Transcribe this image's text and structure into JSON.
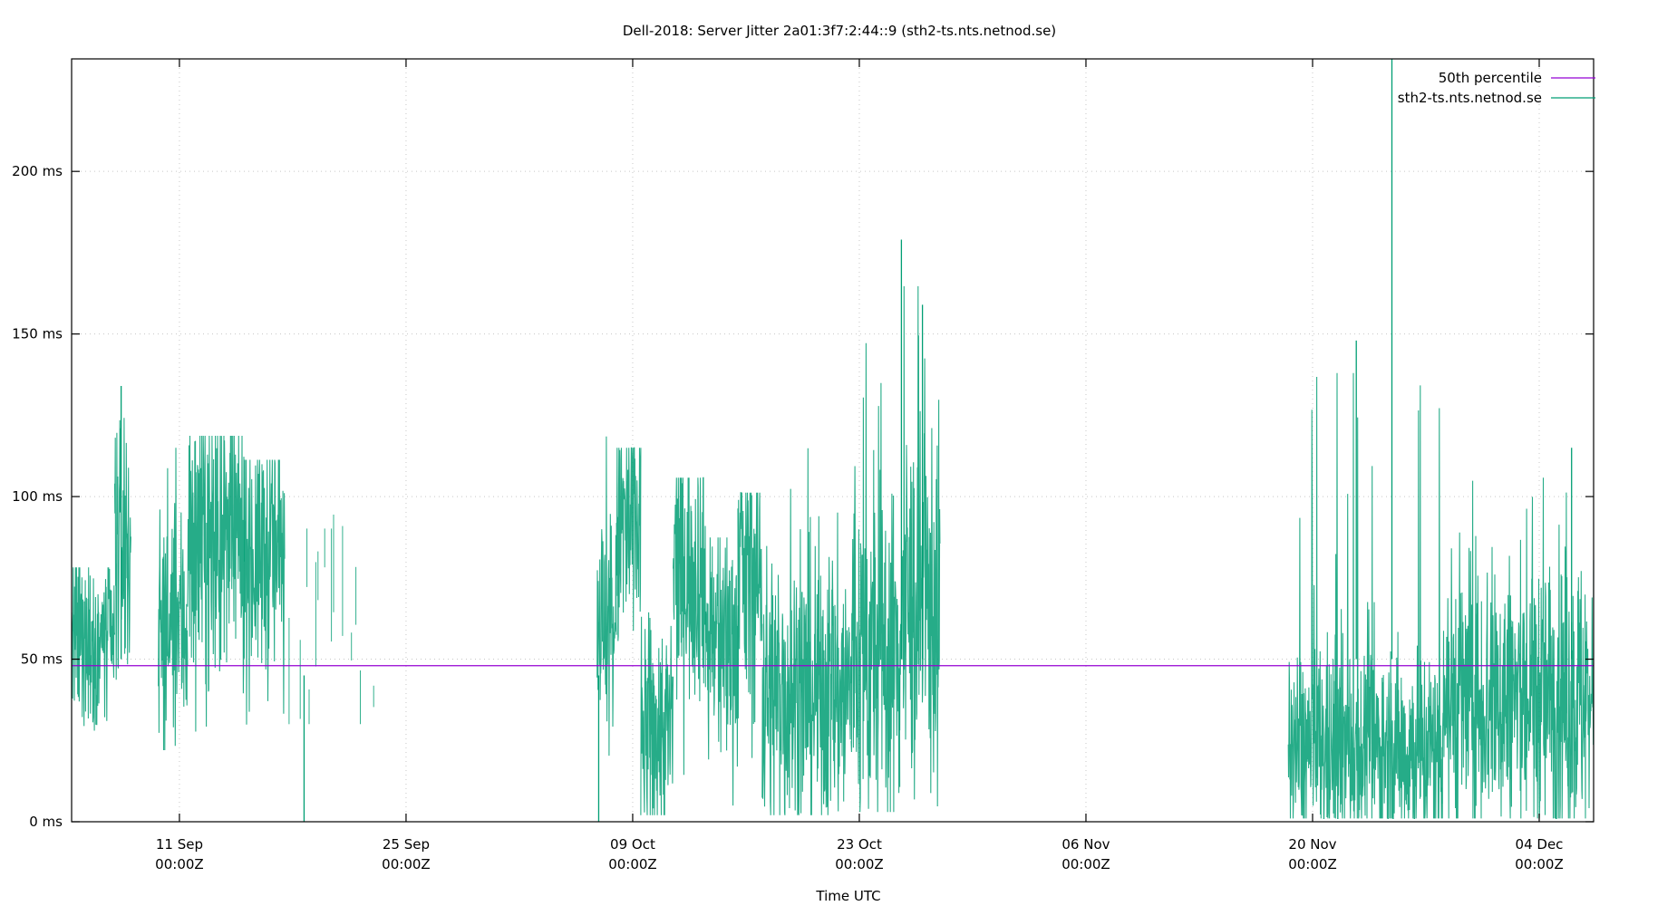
{
  "chart_data": {
    "type": "line",
    "title": "Dell-2018: Server Jitter 2a01:3f7:2:44::9 (sth2-ts.nts.netnod.se)",
    "xlabel": "Time UTC",
    "ylabel": "",
    "ylim": [
      0,
      234.6
    ],
    "y_ticks": [
      {
        "value": 0,
        "label": "0 ms"
      },
      {
        "value": 50,
        "label": "50 ms"
      },
      {
        "value": 100,
        "label": "100 ms"
      },
      {
        "value": 150,
        "label": "150 ms"
      },
      {
        "value": 200,
        "label": "200 ms"
      }
    ],
    "x_range_days": [
      -6.66,
      87.36
    ],
    "x_ticks": [
      {
        "day": 0,
        "label1": "11 Sep",
        "label2": "00:00Z"
      },
      {
        "day": 14,
        "label1": "25 Sep",
        "label2": "00:00Z"
      },
      {
        "day": 28,
        "label1": "09 Oct",
        "label2": "00:00Z"
      },
      {
        "day": 42,
        "label1": "23 Oct",
        "label2": "00:00Z"
      },
      {
        "day": 56,
        "label1": "06 Nov",
        "label2": "00:00Z"
      },
      {
        "day": 70,
        "label1": "20 Nov",
        "label2": "00:00Z"
      },
      {
        "day": 84,
        "label1": "04 Dec",
        "label2": "00:00Z"
      }
    ],
    "grid": true,
    "legend_position": "top-right",
    "series": [
      {
        "name": "50th percentile",
        "color": "#9400d3",
        "kind": "constant",
        "value": 48
      },
      {
        "name": "sth2-ts.nts.netnod.se",
        "color": "#009e73",
        "kind": "jitter",
        "segments": [
          {
            "start": -6.66,
            "end": -4.0,
            "center": 55,
            "spread": 14,
            "min": 28,
            "max": 85,
            "density": 18
          },
          {
            "start": -4.0,
            "end": -3.0,
            "center": 85,
            "spread": 20,
            "min": 35,
            "max": 135,
            "density": 18
          },
          {
            "start": -1.3,
            "end": 0.5,
            "center": 60,
            "spread": 18,
            "min": 22,
            "max": 125,
            "density": 18
          },
          {
            "start": 0.5,
            "end": 4.0,
            "center": 85,
            "spread": 22,
            "min": 15,
            "max": 129,
            "density": 18
          },
          {
            "start": 4.0,
            "end": 6.5,
            "center": 82,
            "spread": 20,
            "min": 0,
            "max": 121,
            "density": 16
          },
          {
            "start": 6.5,
            "end": 12.0,
            "center": 60,
            "spread": 20,
            "min": 30,
            "max": 98,
            "density": 2.5
          },
          {
            "start": 25.8,
            "end": 27.0,
            "center": 60,
            "spread": 20,
            "min": 0,
            "max": 133,
            "density": 18
          },
          {
            "start": 27.0,
            "end": 28.5,
            "center": 90,
            "spread": 22,
            "min": 20,
            "max": 125,
            "density": 18
          },
          {
            "start": 28.5,
            "end": 30.5,
            "center": 28,
            "spread": 18,
            "min": 2,
            "max": 70,
            "density": 18
          },
          {
            "start": 30.5,
            "end": 32.5,
            "center": 78,
            "spread": 20,
            "min": 10,
            "max": 115,
            "density": 18
          },
          {
            "start": 32.5,
            "end": 34.5,
            "center": 55,
            "spread": 20,
            "min": 5,
            "max": 95,
            "density": 18
          },
          {
            "start": 34.5,
            "end": 36.0,
            "center": 75,
            "spread": 22,
            "min": 10,
            "max": 110,
            "density": 18
          },
          {
            "start": 36.0,
            "end": 41.5,
            "center": 40,
            "spread": 22,
            "min": 2,
            "max": 132,
            "density": 18
          },
          {
            "start": 41.5,
            "end": 44.5,
            "center": 50,
            "spread": 26,
            "min": 3,
            "max": 160,
            "density": 18
          },
          {
            "start": 44.5,
            "end": 47.0,
            "center": 65,
            "spread": 28,
            "min": 2,
            "max": 179,
            "density": 18
          },
          {
            "start": 68.5,
            "end": 78.0,
            "center": 22,
            "spread": 16,
            "min": 1,
            "max": 150,
            "density": 18
          },
          {
            "start": 78.0,
            "end": 87.36,
            "center": 38,
            "spread": 22,
            "min": 1,
            "max": 115,
            "density": 18
          }
        ],
        "notable_points": [
          {
            "day": -3.6,
            "value": 134
          },
          {
            "day": 44.6,
            "value": 179
          },
          {
            "day": 45.9,
            "value": 159
          },
          {
            "day": 72.7,
            "value": 148
          },
          {
            "day": 74.9,
            "value": 234.6
          },
          {
            "day": 86.0,
            "value": 115
          },
          {
            "day": 25.9,
            "value": 0
          },
          {
            "day": 7.7,
            "value": 0
          }
        ]
      }
    ]
  },
  "legend": {
    "items": [
      {
        "label": "50th percentile",
        "color": "#9400d3"
      },
      {
        "label": "sth2-ts.nts.netnod.se",
        "color": "#009e73"
      }
    ]
  }
}
